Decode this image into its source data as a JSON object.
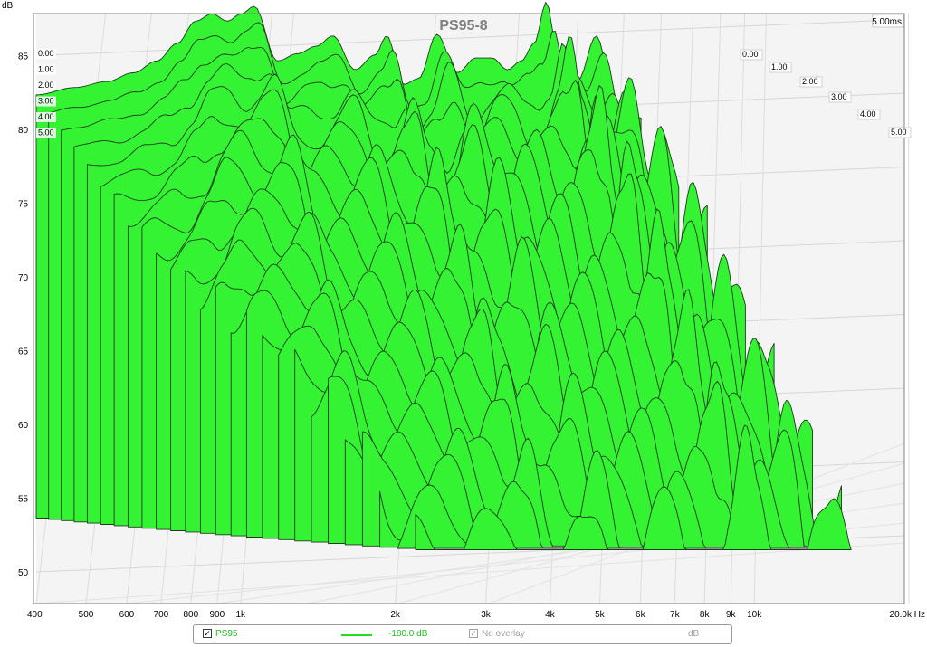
{
  "chart_data": {
    "type": "waterfall",
    "title": "PS95-8",
    "ylabel": "dB",
    "xlabel_unit": "Hz",
    "time_unit_label": "5.00ms",
    "ylim": [
      48,
      88
    ],
    "xlim": [
      400,
      20000
    ],
    "x_scale": "log",
    "y_ticks": [
      "85",
      "80",
      "75",
      "70",
      "65",
      "60",
      "55",
      "50"
    ],
    "x_ticks": [
      "400",
      "500",
      "600",
      "700",
      "800",
      "900",
      "1k",
      "2k",
      "3k",
      "4k",
      "5k",
      "6k",
      "7k",
      "8k",
      "9k",
      "10k",
      "20.0k Hz"
    ],
    "time_labels_left": [
      "0.00",
      "1.00",
      "2.00",
      "3.00",
      "4.00",
      "5.00"
    ],
    "time_labels_right": [
      "0.00",
      "1.00",
      "2.00",
      "3.00",
      "4.00",
      "5.00"
    ],
    "fill_color": "#33f333",
    "series": [
      {
        "name": "0.00 ms",
        "freq": [
          400,
          500,
          600,
          700,
          800,
          900,
          1000,
          1100,
          1200,
          1300,
          1400,
          1600,
          1800,
          2000,
          2200,
          2500,
          2800,
          3000,
          3300,
          3600,
          4000,
          4500,
          5000,
          5500,
          6000,
          6500,
          7000,
          7500,
          8000,
          9000,
          10000,
          11000
        ],
        "db": [
          80.5,
          81,
          81.4,
          82,
          82.8,
          84,
          85.5,
          86,
          85.5,
          86,
          86.5,
          82.8,
          83.3,
          83.8,
          84.5,
          82.2,
          83.2,
          84.5,
          81.2,
          81.6,
          84.6,
          82,
          83,
          83,
          82.2,
          82.8,
          84,
          86.8,
          83.5,
          81.5,
          84.5,
          81
        ]
      }
    ]
  },
  "legend": {
    "series_label": "PS95",
    "series_checked": "✓",
    "value_label": "-180.0 dB",
    "overlay_checked": "✓",
    "overlay_label": "No overlay",
    "unit_label": "dB"
  }
}
